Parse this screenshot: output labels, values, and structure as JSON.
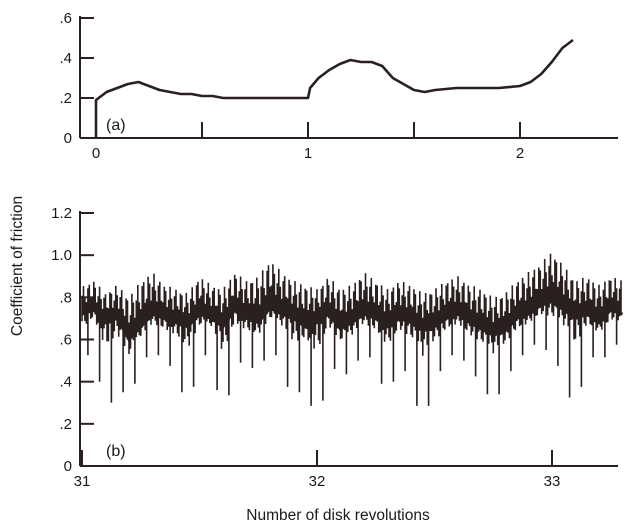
{
  "ylabel": "Coefficient of friction",
  "xlabel": "Number of disk revolutions",
  "chart_data": [
    {
      "type": "line",
      "panel_label": "(a)",
      "xlabel": "",
      "ylabel": "Coefficient of friction",
      "xlim": [
        -0.05,
        2.35
      ],
      "ylim": [
        0,
        0.6
      ],
      "x_ticks": [
        0,
        0.5,
        1,
        1.5,
        2
      ],
      "x_tick_labels": [
        "0",
        "",
        "1",
        "",
        "2"
      ],
      "y_ticks": [
        0,
        0.2,
        0.4,
        0.6
      ],
      "y_tick_labels": [
        "0",
        ".2",
        ".4",
        ".6"
      ],
      "series": [
        {
          "x": [
            0,
            0,
            0.05,
            0.1,
            0.15,
            0.2,
            0.25,
            0.3,
            0.35,
            0.4,
            0.45,
            0.5,
            0.55,
            0.6,
            0.7,
            0.8,
            0.9,
            1.0,
            1.01,
            1.05,
            1.1,
            1.15,
            1.2,
            1.25,
            1.3,
            1.35,
            1.4,
            1.45,
            1.5,
            1.55,
            1.6,
            1.7,
            1.8,
            1.9,
            2.0,
            2.05,
            2.1,
            2.15,
            2.2,
            2.25
          ],
          "y": [
            0.0,
            0.19,
            0.23,
            0.25,
            0.27,
            0.28,
            0.26,
            0.24,
            0.23,
            0.22,
            0.22,
            0.21,
            0.21,
            0.2,
            0.2,
            0.2,
            0.2,
            0.2,
            0.25,
            0.3,
            0.34,
            0.37,
            0.39,
            0.38,
            0.38,
            0.36,
            0.3,
            0.27,
            0.24,
            0.23,
            0.24,
            0.25,
            0.25,
            0.25,
            0.26,
            0.28,
            0.32,
            0.38,
            0.45,
            0.49
          ]
        }
      ]
    },
    {
      "type": "line",
      "panel_label": "(b)",
      "xlabel": "Number of disk revolutions",
      "ylabel": "Coefficient of friction",
      "xlim": [
        31,
        33.3
      ],
      "ylim": [
        0,
        1.2
      ],
      "x_ticks": [
        31,
        32,
        33
      ],
      "x_tick_labels": [
        "31",
        "32",
        "33"
      ],
      "y_ticks": [
        0,
        0.2,
        0.4,
        0.6,
        0.8,
        1.0,
        1.2
      ],
      "y_tick_labels": [
        "0",
        ".2",
        ".4",
        ".6",
        ".8",
        "1.0",
        "1.2"
      ],
      "series": [
        {
          "x": [
            31.0,
            31.05,
            31.1,
            31.15,
            31.2,
            31.25,
            31.3,
            31.35,
            31.4,
            31.45,
            31.5,
            31.55,
            31.6,
            31.65,
            31.7,
            31.75,
            31.8,
            31.85,
            31.9,
            31.95,
            32.0,
            32.05,
            32.1,
            32.15,
            32.2,
            32.25,
            32.3,
            32.35,
            32.4,
            32.45,
            32.5,
            32.55,
            32.6,
            32.65,
            32.7,
            32.75,
            32.8,
            32.85,
            32.9,
            32.95,
            33.0,
            33.05,
            33.1,
            33.15,
            33.2,
            33.25,
            33.3
          ],
          "y_mean": [
            0.72,
            0.74,
            0.68,
            0.7,
            0.6,
            0.66,
            0.72,
            0.7,
            0.68,
            0.66,
            0.72,
            0.7,
            0.66,
            0.74,
            0.7,
            0.68,
            0.75,
            0.72,
            0.7,
            0.66,
            0.68,
            0.72,
            0.65,
            0.68,
            0.72,
            0.7,
            0.66,
            0.7,
            0.68,
            0.64,
            0.66,
            0.7,
            0.72,
            0.68,
            0.65,
            0.62,
            0.64,
            0.7,
            0.72,
            0.76,
            0.78,
            0.74,
            0.7,
            0.72,
            0.68,
            0.74,
            0.72
          ],
          "y_min": [
            0.45,
            0.6,
            0.2,
            0.4,
            0.3,
            0.48,
            0.55,
            0.5,
            0.45,
            0.25,
            0.5,
            0.55,
            0.17,
            0.5,
            0.48,
            0.45,
            0.55,
            0.5,
            0.25,
            0.45,
            0.12,
            0.5,
            0.42,
            0.45,
            0.55,
            0.48,
            0.3,
            0.5,
            0.4,
            0.17,
            0.4,
            0.5,
            0.55,
            0.45,
            0.4,
            0.28,
            0.4,
            0.5,
            0.55,
            0.6,
            0.5,
            0.45,
            0.2,
            0.55,
            0.48,
            0.55,
            0.6
          ],
          "y_max": [
            0.85,
            0.88,
            0.82,
            0.86,
            0.8,
            0.88,
            0.92,
            0.86,
            0.84,
            0.82,
            0.9,
            0.86,
            0.84,
            0.92,
            0.88,
            0.9,
            0.98,
            0.92,
            0.88,
            0.86,
            0.84,
            0.9,
            0.84,
            0.86,
            0.92,
            0.88,
            0.84,
            0.88,
            0.86,
            0.82,
            0.84,
            0.88,
            0.9,
            0.86,
            0.84,
            0.8,
            0.82,
            0.88,
            0.92,
            0.96,
            1.02,
            0.95,
            0.88,
            0.9,
            0.86,
            0.9,
            0.88
          ]
        }
      ]
    }
  ]
}
